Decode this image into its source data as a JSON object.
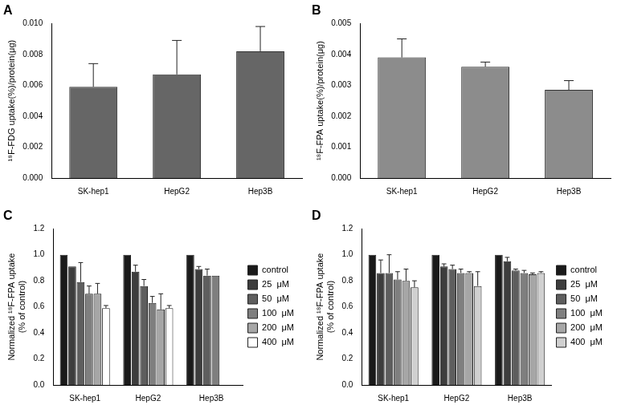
{
  "chart_data": [
    {
      "type": "bar",
      "title": "A",
      "y_label": "¹⁸F-FDG uptake(%)/protein(μg)",
      "categories": [
        "SK-hep1",
        "HepG2",
        "Hep3B"
      ],
      "values": [
        0.0059,
        0.0067,
        0.0082
      ],
      "errors": [
        0.0015,
        0.0022,
        0.0016
      ],
      "color": "#666666",
      "ylim": [
        0,
        0.01
      ],
      "yticks": [
        {
          "value": 0,
          "label": "0.000"
        },
        {
          "value": 0.002,
          "label": "0.002"
        },
        {
          "value": 0.004,
          "label": "0.004"
        },
        {
          "value": 0.006,
          "label": "0.006"
        },
        {
          "value": 0.008,
          "label": "0.008"
        },
        {
          "value": 0.01,
          "label": "0.010"
        }
      ],
      "grid": false
    },
    {
      "type": "bar",
      "title": "B",
      "y_label": "¹⁸F-FPA uptake(%)/protein(μg)",
      "categories": [
        "SK-hep1",
        "HepG2",
        "Hep3B"
      ],
      "values": [
        0.0039,
        0.0036,
        0.00285
      ],
      "errors": [
        0.0006,
        0.00015,
        0.0003
      ],
      "color": "#8c8c8c",
      "ylim": [
        0,
        0.005
      ],
      "yticks": [
        {
          "value": 0,
          "label": "0.000"
        },
        {
          "value": 0.001,
          "label": "0.001"
        },
        {
          "value": 0.002,
          "label": "0.002"
        },
        {
          "value": 0.003,
          "label": "0.003"
        },
        {
          "value": 0.004,
          "label": "0.004"
        },
        {
          "value": 0.005,
          "label": "0.005"
        }
      ],
      "grid": false
    },
    {
      "type": "bar",
      "title": "C",
      "y_label": [
        "Normalized ¹⁸F-FPA uptake",
        "(% of control)"
      ],
      "categories": [
        "SK-hep1",
        "HepG2",
        "Hep3B"
      ],
      "series": [
        {
          "name": "control",
          "color": "#1a1a1a",
          "values": [
            1.0,
            1.0,
            1.0
          ],
          "errors": [
            null,
            null,
            null
          ]
        },
        {
          "name": "25  μM",
          "color": "#3d3d3d",
          "values": [
            0.91,
            0.87,
            0.89
          ],
          "errors": [
            null,
            0.05,
            0.02
          ]
        },
        {
          "name": "50  μM",
          "color": "#5e5e5e",
          "values": [
            0.79,
            0.76,
            0.84
          ],
          "errors": [
            0.15,
            0.05,
            0.05
          ]
        },
        {
          "name": "100  μM",
          "color": "#7f7f7f",
          "values": [
            0.7,
            0.63,
            0.84
          ],
          "errors": [
            0.06,
            0.05,
            null
          ]
        },
        {
          "name": "200  μM",
          "color": "#a6a6a6",
          "values": [
            0.7,
            0.58,
            null
          ],
          "errors": [
            0.08,
            0.12,
            null
          ]
        },
        {
          "name": "400  μM",
          "color": "#ffffff",
          "values": [
            0.59,
            0.59,
            null
          ],
          "errors": [
            0.02,
            0.02,
            null
          ]
        }
      ],
      "ylim": [
        0,
        1.2
      ],
      "yticks": [
        {
          "value": 0,
          "label": "0.0"
        },
        {
          "value": 0.2,
          "label": "0.2"
        },
        {
          "value": 0.4,
          "label": "0.4"
        },
        {
          "value": 0.6,
          "label": "0.6"
        },
        {
          "value": 0.8,
          "label": "0.8"
        },
        {
          "value": 1.0,
          "label": "1.0"
        },
        {
          "value": 1.2,
          "label": "1.2"
        }
      ],
      "grid": false,
      "legend": "right"
    },
    {
      "type": "bar",
      "title": "D",
      "y_label": [
        "Normalized ¹⁸F-FPA uptake",
        "(% of control)"
      ],
      "categories": [
        "SK-hep1",
        "HepG2",
        "Hep3B"
      ],
      "series": [
        {
          "name": "control",
          "color": "#1a1a1a",
          "values": [
            1.0,
            1.0,
            1.0
          ],
          "errors": [
            null,
            null,
            null
          ]
        },
        {
          "name": "25  μM",
          "color": "#3d3d3d",
          "values": [
            0.86,
            0.91,
            0.95
          ],
          "errors": [
            0.1,
            0.02,
            0.03
          ]
        },
        {
          "name": "50  μM",
          "color": "#5e5e5e",
          "values": [
            0.86,
            0.89,
            0.88
          ],
          "errors": [
            0.14,
            0.03,
            0.01
          ]
        },
        {
          "name": "100  μM",
          "color": "#7f7f7f",
          "values": [
            0.81,
            0.86,
            0.86
          ],
          "errors": [
            0.06,
            0.03,
            0.02
          ]
        },
        {
          "name": "200  μM",
          "color": "#a6a6a6",
          "values": [
            0.8,
            0.86,
            0.85
          ],
          "errors": [
            0.09,
            0.01,
            0.01
          ]
        },
        {
          "name": "400  μM",
          "color": "#d0d0d0",
          "values": [
            0.75,
            0.76,
            0.86
          ],
          "errors": [
            0.05,
            0.11,
            0.01
          ]
        }
      ],
      "ylim": [
        0,
        1.2
      ],
      "yticks": [
        {
          "value": 0,
          "label": "0.0"
        },
        {
          "value": 0.2,
          "label": "0.2"
        },
        {
          "value": 0.4,
          "label": "0.4"
        },
        {
          "value": 0.6,
          "label": "0.6"
        },
        {
          "value": 0.8,
          "label": "0.8"
        },
        {
          "value": 1.0,
          "label": "1.0"
        },
        {
          "value": 1.2,
          "label": "1.2"
        }
      ],
      "grid": false,
      "legend": "right"
    }
  ]
}
